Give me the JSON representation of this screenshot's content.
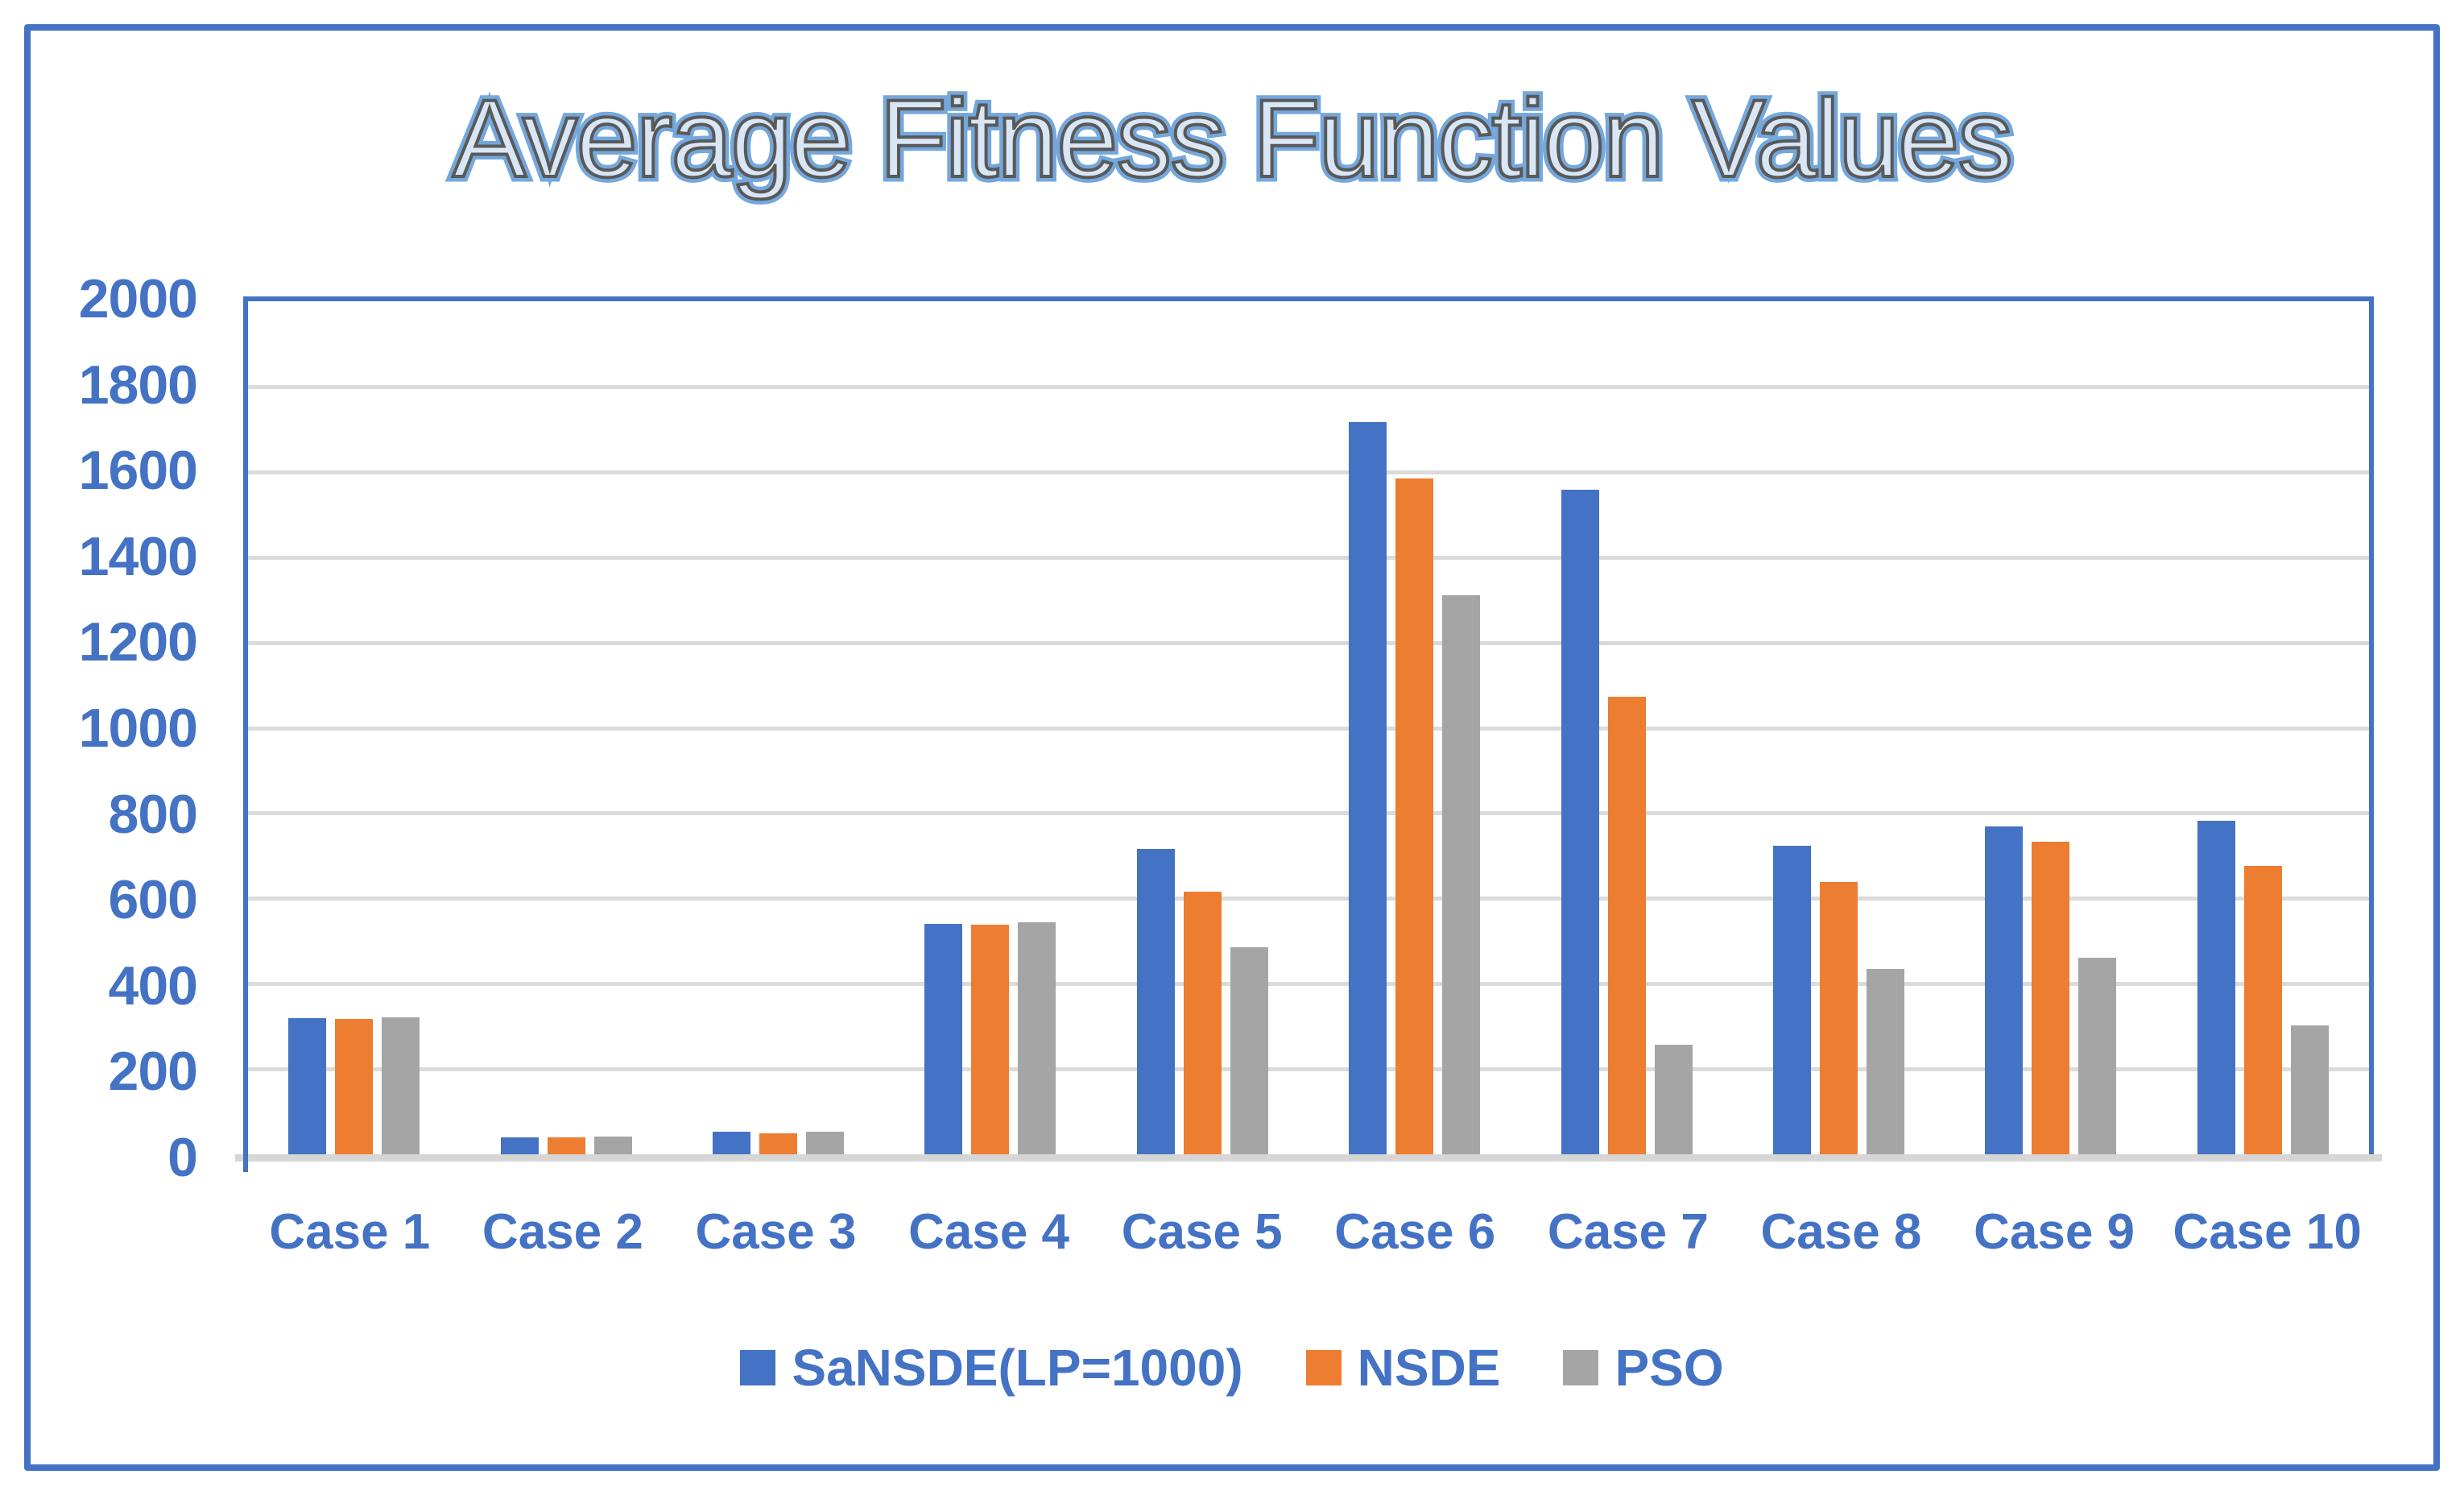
{
  "title": "Average Fitness Function Values",
  "colors": {
    "accent_blue": "#4472C4",
    "bar_blue": "#4472C4",
    "bar_orange": "#ED7D31",
    "bar_gray": "#A5A5A5",
    "gridline": "#DBDBDB",
    "axis_line": "#D6D6D6",
    "outer_border": "#4472C4",
    "title_fill_blue": "#74A7DC",
    "title_outline_gray": "#595959",
    "label_text": "#4472C4"
  },
  "y_axis": {
    "tick_labels": [
      "2000",
      "1800",
      "1600",
      "1400",
      "1200",
      "1000",
      "800",
      "600",
      "400",
      "200",
      "0"
    ]
  },
  "chart_data": {
    "type": "bar",
    "title": "Average Fitness Function Values",
    "categories": [
      "Case 1",
      "Case 2",
      "Case 3",
      "Case 4",
      "Case 5",
      "Case 6",
      "Case 7",
      "Case 8",
      "Case 9",
      "Case 10"
    ],
    "series": [
      {
        "name": "SaNSDE(LP=1000)",
        "color": "#4472C4",
        "values": [
          320,
          40,
          52,
          540,
          715,
          1717,
          1558,
          723,
          769,
          781
        ]
      },
      {
        "name": "NSDE",
        "color": "#ED7D31",
        "values": [
          318,
          40,
          50,
          538,
          616,
          1584,
          1072,
          638,
          732,
          677
        ]
      },
      {
        "name": "PSO",
        "color": "#A5A5A5",
        "values": [
          321,
          41,
          52,
          544,
          486,
          1310,
          256,
          434,
          460,
          303
        ]
      }
    ],
    "xlabel": "",
    "ylabel": "",
    "ylim": [
      0,
      2000
    ],
    "y_step": 200,
    "grid": true,
    "legend_position": "bottom"
  }
}
